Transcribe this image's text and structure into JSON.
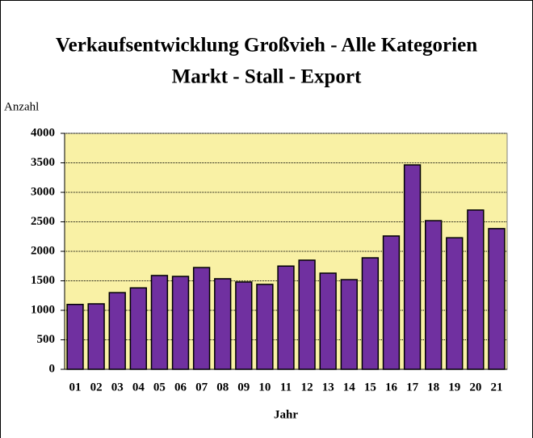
{
  "chart_data": {
    "type": "bar",
    "title": "Verkaufsentwicklung Großvieh - Alle Kategorien",
    "subtitle": "Markt - Stall - Export",
    "y_label": "Anzahl",
    "x_label": "Jahr",
    "categories": [
      "01",
      "02",
      "03",
      "04",
      "05",
      "06",
      "07",
      "08",
      "09",
      "10",
      "11",
      "12",
      "13",
      "14",
      "15",
      "16",
      "17",
      "18",
      "19",
      "20",
      "21"
    ],
    "values": [
      1100,
      1110,
      1300,
      1380,
      1590,
      1575,
      1725,
      1535,
      1480,
      1440,
      1750,
      1850,
      1630,
      1520,
      1890,
      2260,
      3465,
      2520,
      2230,
      2700,
      2385
    ],
    "color": "#7030a0",
    "ylim": [
      0,
      4000
    ],
    "yticks": [
      0,
      500,
      1000,
      1500,
      2000,
      2500,
      3000,
      3500,
      4000
    ],
    "grid": true
  }
}
